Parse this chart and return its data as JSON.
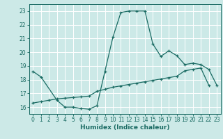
{
  "xlabel": "Humidex (Indice chaleur)",
  "ylabel": "",
  "bg_color": "#cce9e7",
  "grid_color": "#ffffff",
  "line_color": "#1a6b63",
  "xlim": [
    -0.5,
    23.5
  ],
  "ylim": [
    15.5,
    23.5
  ],
  "xticks": [
    0,
    1,
    2,
    3,
    4,
    5,
    6,
    7,
    8,
    9,
    10,
    11,
    12,
    13,
    14,
    15,
    16,
    17,
    18,
    19,
    20,
    21,
    22,
    23
  ],
  "yticks": [
    16,
    17,
    18,
    19,
    20,
    21,
    22,
    23
  ],
  "curve1_x": [
    0,
    1,
    3,
    4,
    5,
    6,
    7,
    8,
    9,
    10,
    11,
    12,
    13,
    14,
    15,
    16,
    17,
    18,
    19,
    20,
    21,
    22,
    23
  ],
  "curve1_y": [
    18.6,
    18.2,
    16.5,
    16.0,
    16.0,
    15.9,
    15.85,
    16.1,
    18.6,
    21.1,
    22.9,
    23.0,
    23.0,
    23.0,
    20.6,
    19.7,
    20.1,
    19.75,
    19.1,
    19.2,
    19.1,
    18.75,
    17.6
  ],
  "curve2_x": [
    0,
    1,
    2,
    3,
    4,
    5,
    6,
    7,
    8,
    9,
    10,
    11,
    12,
    13,
    14,
    15,
    16,
    17,
    18,
    19,
    20,
    21,
    22
  ],
  "curve2_y": [
    16.3,
    16.4,
    16.5,
    16.6,
    16.65,
    16.7,
    16.75,
    16.8,
    17.15,
    17.3,
    17.45,
    17.55,
    17.65,
    17.75,
    17.85,
    17.95,
    18.05,
    18.15,
    18.25,
    18.65,
    18.75,
    18.85,
    17.6
  ]
}
